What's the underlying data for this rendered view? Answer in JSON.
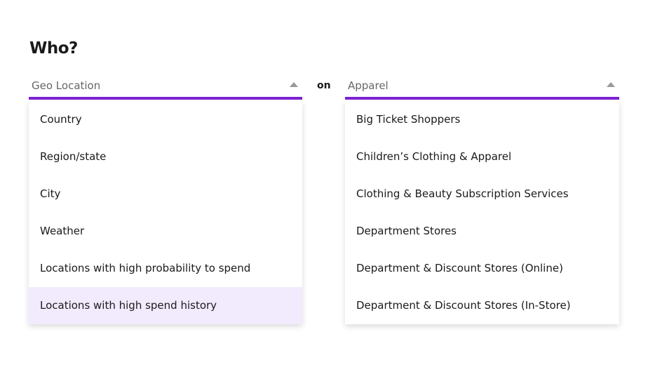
{
  "title": "Who?",
  "connector": "on",
  "accent": "#7b22d4",
  "left": {
    "value": "Geo Location",
    "options": [
      "Country",
      "Region/state",
      "City",
      "Weather",
      "Locations with high probability to spend",
      "Locations with high spend history"
    ],
    "highlighted_index": 5
  },
  "right": {
    "value": "Apparel",
    "options": [
      "Big Ticket Shoppers",
      "Children’s Clothing & Apparel",
      "Clothing & Beauty Subscription Services",
      "Department Stores",
      "Department & Discount Stores (Online)",
      "Department & Discount Stores (In-Store)"
    ]
  }
}
